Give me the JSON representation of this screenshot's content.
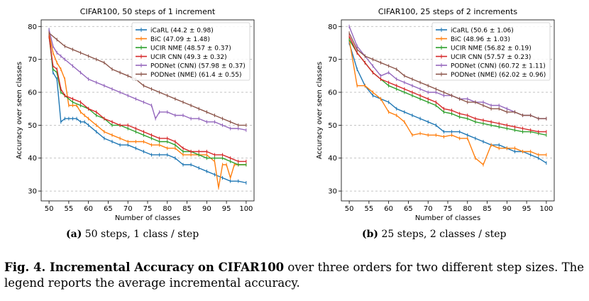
{
  "colors": {
    "iCaRL": "#1f77b4",
    "BiC": "#ff7f0e",
    "UCIR NME": "#2ca02c",
    "UCIR CNN": "#d62728",
    "PODNet (CNN)": "#9467bd",
    "PODNet (NME)": "#8c564b"
  },
  "chart_data": [
    {
      "type": "line",
      "title": "CIFAR100, 50 steps of 1 increment",
      "xlabel": "Number of classes",
      "ylabel": "Accuracy over seen classes",
      "xlim": [
        48,
        102
      ],
      "ylim": [
        27,
        82
      ],
      "xticks": [
        50,
        55,
        60,
        65,
        70,
        75,
        80,
        85,
        90,
        95,
        100
      ],
      "yticks": [
        30,
        40,
        50,
        60,
        70,
        80
      ],
      "grid": "horizontal dashed",
      "legend_position": "top-right",
      "series": [
        {
          "name": "iCaRL (44.2 ± 0.98)",
          "x": [
            50,
            51,
            52,
            53,
            54,
            55,
            56,
            57,
            58,
            59,
            60,
            62,
            64,
            66,
            68,
            70,
            72,
            74,
            76,
            78,
            80,
            82,
            84,
            86,
            88,
            90,
            92,
            94,
            96,
            98,
            100
          ],
          "y": [
            79,
            66,
            64,
            51,
            52,
            52,
            52,
            52,
            51,
            51,
            50,
            48,
            46,
            45,
            44,
            44,
            43,
            42,
            41,
            41,
            41,
            40,
            38,
            38,
            37,
            36,
            35,
            34,
            33,
            33,
            32.5
          ]
        },
        {
          "name": "BiC (47.09 ± 1.48)",
          "x": [
            50,
            51,
            52,
            53,
            54,
            55,
            56,
            57,
            58,
            59,
            60,
            62,
            64,
            66,
            68,
            70,
            72,
            74,
            76,
            78,
            80,
            82,
            84,
            86,
            88,
            90,
            92,
            93,
            94,
            95,
            96,
            97,
            98,
            100
          ],
          "y": [
            78,
            72,
            69,
            67,
            64,
            56,
            56,
            56,
            54,
            53,
            52,
            50,
            48,
            47,
            46,
            45,
            45,
            45,
            44,
            44,
            43,
            43,
            41,
            41,
            41,
            41,
            39,
            31,
            38,
            38,
            34,
            38,
            38,
            38
          ]
        },
        {
          "name": "UCIR NME (48.57 ± 0.37)",
          "x": [
            50,
            51,
            52,
            53,
            54,
            56,
            58,
            60,
            62,
            64,
            66,
            68,
            70,
            72,
            74,
            76,
            78,
            80,
            82,
            84,
            86,
            88,
            90,
            92,
            94,
            96,
            98,
            100
          ],
          "y": [
            77,
            67,
            66,
            60,
            59,
            57,
            56,
            55,
            53,
            52,
            50,
            50,
            49,
            48,
            47,
            46,
            45,
            45,
            44,
            42,
            42,
            41,
            40,
            40,
            40,
            39,
            38,
            38
          ]
        },
        {
          "name": "UCIR CNN (49.3 ± 0.32)",
          "x": [
            50,
            51,
            52,
            53,
            54,
            56,
            58,
            60,
            62,
            64,
            66,
            68,
            70,
            72,
            74,
            76,
            78,
            80,
            82,
            84,
            86,
            88,
            90,
            92,
            94,
            96,
            98,
            100
          ],
          "y": [
            77,
            68,
            67,
            61,
            59,
            58,
            57,
            55,
            54,
            52,
            51,
            50,
            50,
            49,
            48,
            47,
            46,
            46,
            45,
            43,
            42,
            42,
            42,
            41,
            41,
            40,
            39,
            39
          ]
        },
        {
          "name": "PODNet (CNN) (57.98 ± 0.37)",
          "x": [
            50,
            51,
            52,
            53,
            54,
            56,
            58,
            60,
            62,
            64,
            66,
            68,
            70,
            72,
            74,
            76,
            77,
            78,
            80,
            82,
            84,
            86,
            88,
            90,
            92,
            94,
            96,
            98,
            100
          ],
          "y": [
            79,
            74,
            72,
            71,
            70,
            68,
            66,
            64,
            63,
            62,
            61,
            60,
            59,
            58,
            57,
            56,
            52,
            54,
            54,
            53,
            53,
            52,
            52,
            51,
            51,
            50,
            49,
            49,
            48.5
          ]
        },
        {
          "name": "PODNet (NME) (61.4 ± 0.55)",
          "x": [
            50,
            52,
            54,
            56,
            58,
            60,
            62,
            64,
            66,
            68,
            70,
            72,
            74,
            76,
            78,
            80,
            82,
            84,
            86,
            88,
            90,
            92,
            94,
            96,
            98,
            100
          ],
          "y": [
            78,
            76,
            74,
            73,
            72,
            71,
            70,
            69,
            67,
            66,
            65,
            64,
            62,
            61,
            60,
            59,
            58,
            57,
            56,
            55,
            54,
            53,
            52,
            51,
            50,
            50
          ]
        }
      ]
    },
    {
      "type": "line",
      "title": "CIFAR100, 25 steps of 2 increments",
      "xlabel": "Number of classes",
      "ylabel": "Accuracy over seen classes",
      "xlim": [
        48,
        102
      ],
      "ylim": [
        27,
        82
      ],
      "xticks": [
        50,
        55,
        60,
        65,
        70,
        75,
        80,
        85,
        90,
        95,
        100
      ],
      "yticks": [
        30,
        40,
        50,
        60,
        70,
        80
      ],
      "grid": "horizontal dashed",
      "legend_position": "top-right",
      "series": [
        {
          "name": "iCaRL (50.6 ± 1.06)",
          "x": [
            50,
            52,
            54,
            56,
            58,
            60,
            62,
            64,
            66,
            68,
            70,
            72,
            74,
            76,
            78,
            80,
            82,
            84,
            86,
            88,
            90,
            92,
            94,
            96,
            98,
            100
          ],
          "y": [
            75,
            67,
            62,
            59,
            58,
            57,
            55,
            54,
            53,
            52,
            51,
            50,
            48,
            48,
            48,
            47,
            46,
            45,
            44,
            44,
            43,
            42,
            42,
            41,
            40,
            38.5
          ]
        },
        {
          "name": "BiC (48.96 ± 1.03)",
          "x": [
            50,
            52,
            54,
            56,
            58,
            60,
            62,
            64,
            66,
            68,
            70,
            72,
            74,
            76,
            78,
            80,
            82,
            84,
            86,
            88,
            90,
            92,
            94,
            96,
            98,
            100
          ],
          "y": [
            76,
            62,
            62,
            60,
            58,
            54,
            53,
            51,
            47,
            47.5,
            47,
            47,
            46.5,
            47,
            46,
            46,
            40,
            38,
            44,
            43,
            43,
            43,
            42,
            42,
            41,
            41
          ]
        },
        {
          "name": "UCIR NME (56.82 ± 0.19)",
          "x": [
            50,
            52,
            54,
            56,
            58,
            60,
            62,
            64,
            66,
            68,
            70,
            72,
            74,
            76,
            78,
            80,
            82,
            84,
            86,
            88,
            90,
            92,
            94,
            96,
            98,
            100
          ],
          "y": [
            76,
            72,
            69,
            66,
            64,
            62,
            61,
            60,
            59,
            58,
            57,
            56,
            54,
            53.5,
            52.5,
            52,
            51,
            50.5,
            50,
            49.5,
            49,
            48.5,
            48,
            48,
            47.5,
            47
          ]
        },
        {
          "name": "UCIR CNN (57.57 ± 0.23)",
          "x": [
            50,
            52,
            54,
            56,
            58,
            60,
            62,
            64,
            66,
            68,
            70,
            72,
            74,
            76,
            78,
            80,
            82,
            84,
            86,
            88,
            90,
            92,
            94,
            96,
            98,
            100
          ],
          "y": [
            77,
            72,
            69,
            66,
            64,
            63,
            62,
            61,
            60,
            59,
            58,
            57,
            55,
            54.5,
            53.5,
            53,
            52,
            51.5,
            51,
            50.5,
            50,
            49.5,
            49,
            48.5,
            48,
            48
          ]
        },
        {
          "name": "PODNet (CNN) (60.72 ± 1.11)",
          "x": [
            50,
            52,
            54,
            56,
            58,
            60,
            62,
            64,
            66,
            68,
            70,
            72,
            74,
            76,
            78,
            80,
            82,
            84,
            86,
            88,
            90,
            92,
            94,
            96,
            98,
            100
          ],
          "y": [
            80,
            74,
            71,
            68,
            65,
            66,
            64,
            63,
            62,
            61,
            60,
            60,
            59,
            59,
            58,
            58,
            57,
            57,
            56,
            56,
            55,
            54,
            53,
            53,
            52,
            52
          ]
        },
        {
          "name": "PODNet (NME) (62.02 ± 0.96)",
          "x": [
            50,
            52,
            54,
            56,
            58,
            60,
            62,
            64,
            66,
            68,
            70,
            72,
            74,
            76,
            78,
            80,
            82,
            84,
            86,
            88,
            90,
            92,
            94,
            96,
            98,
            100
          ],
          "y": [
            78,
            73,
            71,
            70,
            69,
            68,
            67,
            65,
            64,
            63,
            62,
            61,
            60,
            59,
            58,
            57,
            57,
            56,
            55,
            55,
            54,
            54,
            53,
            53,
            52,
            52
          ]
        }
      ]
    }
  ],
  "captions": {
    "sub_a_label": "(a)",
    "sub_a_text": " 50 steps, 1 class / step",
    "sub_b_label": "(b)",
    "sub_b_text": " 25 steps, 2 classes / step",
    "figure_label": "Fig. 4.",
    "figure_bold": " Incremental Accuracy on CIFAR100",
    "figure_text": " over three orders for two different step sizes. The legend reports the average incremental accuracy."
  }
}
